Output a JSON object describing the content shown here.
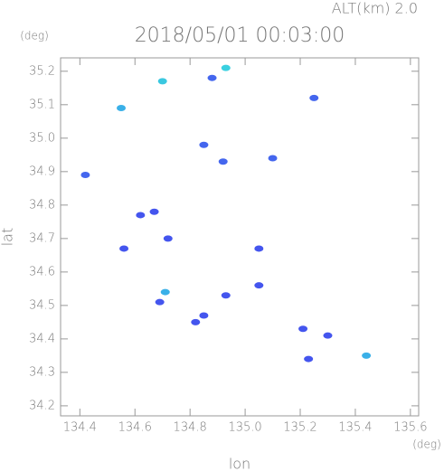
{
  "chart_data": {
    "type": "scatter",
    "title": "2018/05/01 00:03:00",
    "subtitle": "ALT(km) 2.0",
    "x_label": "lon",
    "y_label": "lat",
    "x_unit": "(deg)",
    "y_unit": "(deg)",
    "xlim": [
      134.33,
      135.63
    ],
    "ylim": [
      34.17,
      35.24
    ],
    "xticks": [
      134.4,
      134.6,
      134.8,
      {
        "value": 135.0,
        "label": "135.0"
      },
      135.2,
      135.4,
      135.6
    ],
    "yticks": [
      34.2,
      34.3,
      34.4,
      34.5,
      34.6,
      34.7,
      34.8,
      34.9,
      {
        "value": 35.0,
        "label": "35.0"
      },
      35.1,
      35.2
    ],
    "x": [
      134.55,
      134.7,
      134.93,
      134.88,
      135.25,
      134.85,
      134.92,
      135.1,
      134.42,
      134.62,
      134.67,
      134.56,
      134.72,
      135.05,
      135.05,
      134.71,
      134.69,
      134.93,
      134.85,
      134.82,
      135.21,
      135.3,
      135.23,
      135.44
    ],
    "values": [
      35.09,
      35.17,
      35.21,
      35.18,
      35.12,
      34.98,
      34.93,
      34.94,
      34.89,
      34.77,
      34.78,
      34.67,
      34.7,
      34.67,
      34.56,
      34.54,
      34.51,
      34.53,
      34.47,
      34.45,
      34.43,
      34.41,
      34.34,
      34.35
    ],
    "colors": [
      "#3ab0e8",
      "#3ac8e0",
      "#3ad0e0",
      "#4466ee",
      "#4466ee",
      "#4466ee",
      "#4466ee",
      "#4466ee",
      "#4466ee",
      "#4455ee",
      "#4455ee",
      "#4455ee",
      "#4455ee",
      "#4455ee",
      "#4455ee",
      "#3ab0e8",
      "#4455ee",
      "#4455ee",
      "#4455ee",
      "#4455ee",
      "#4455ee",
      "#4455ee",
      "#4455ee",
      "#3ab0e8"
    ]
  }
}
